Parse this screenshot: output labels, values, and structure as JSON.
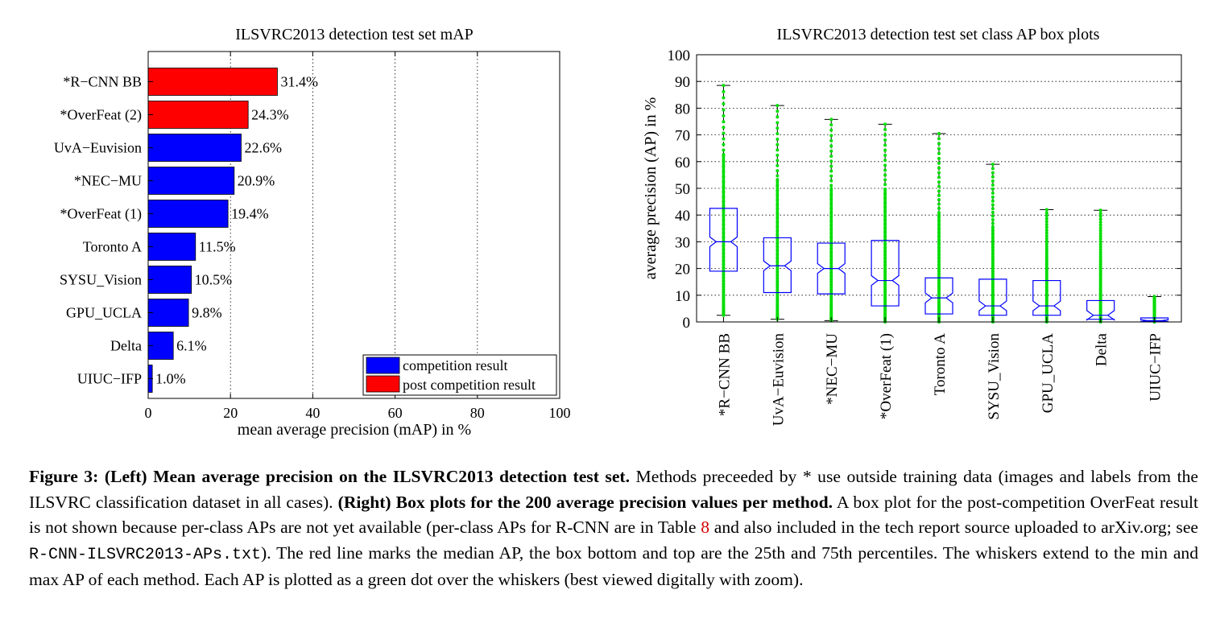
{
  "chart_data": [
    {
      "type": "bar",
      "orientation": "horizontal",
      "title": "ILSVRC2013 detection test set mAP",
      "xlabel": "mean average precision (mAP) in %",
      "xlim": [
        0,
        100
      ],
      "xticks": [
        "0",
        "20",
        "40",
        "60",
        "80",
        "100"
      ],
      "grid": "vertical dotted",
      "categories": [
        "*R−CNN BB",
        "*OverFeat (2)",
        "UvA−Euvision",
        "*NEC−MU",
        "*OverFeat (1)",
        "Toronto A",
        "SYSU_Vision",
        "GPU_UCLA",
        "Delta",
        "UIUC−IFP"
      ],
      "values": [
        31.4,
        24.3,
        22.6,
        20.9,
        19.4,
        11.5,
        10.5,
        9.8,
        6.1,
        1.0
      ],
      "value_labels": [
        "31.4%",
        "24.3%",
        "22.6%",
        "20.9%",
        "19.4%",
        "11.5%",
        "10.5%",
        "9.8%",
        "6.1%",
        "1.0%"
      ],
      "groups": [
        "post",
        "post",
        "comp",
        "comp",
        "comp",
        "comp",
        "comp",
        "comp",
        "comp",
        "comp"
      ],
      "legend": {
        "placement": "bottom-right",
        "entries": [
          {
            "key": "comp",
            "label": "competition result",
            "color": "#0000ff"
          },
          {
            "key": "post",
            "label": "post competition result",
            "color": "#ff0000"
          }
        ]
      }
    },
    {
      "type": "box",
      "title": "ILSVRC2013 detection test set class AP box plots",
      "ylabel": "average precision (AP) in %",
      "ylim": [
        0,
        100
      ],
      "yticks": [
        "0",
        "10",
        "20",
        "30",
        "40",
        "50",
        "60",
        "70",
        "80",
        "90",
        "100"
      ],
      "grid": "horizontal dotted",
      "categories": [
        "*R−CNN BB",
        "UvA−Euvision",
        "*NEC−MU",
        "*OverFeat (1)",
        "Toronto A",
        "SYSU_Vision",
        "GPU_UCLA",
        "Delta",
        "UIUC−IFP"
      ],
      "boxes": [
        {
          "min": 2.5,
          "q1": 19,
          "median": 30,
          "q3": 42.5,
          "max": 88.5
        },
        {
          "min": 1.0,
          "q1": 11,
          "median": 21,
          "q3": 31.5,
          "max": 81
        },
        {
          "min": 0.5,
          "q1": 10.5,
          "median": 20,
          "q3": 29.5,
          "max": 75.8
        },
        {
          "min": 0.0,
          "q1": 6,
          "median": 15.5,
          "q3": 30.5,
          "max": 74
        },
        {
          "min": 0.0,
          "q1": 3,
          "median": 9,
          "q3": 16.5,
          "max": 70.5
        },
        {
          "min": 0.0,
          "q1": 2.5,
          "median": 6,
          "q3": 16,
          "max": 59
        },
        {
          "min": 0.0,
          "q1": 2.5,
          "median": 6,
          "q3": 15.5,
          "max": 42
        },
        {
          "min": 0.0,
          "q1": 1,
          "median": 2.5,
          "q3": 8,
          "max": 41.8
        },
        {
          "min": 0.0,
          "q1": 0.2,
          "median": 0.5,
          "q3": 1.5,
          "max": 9.5
        }
      ],
      "colors": {
        "box": "#0000ff",
        "whisker": "#000000",
        "points": "#00dd00"
      }
    }
  ],
  "caption": {
    "figure_label": "Figure 3:",
    "left_heading": "(Left) Mean average precision on the ILSVRC2013 detection test set.",
    "text1": "Methods preceeded by * use outside training data (images and labels from the ILSVRC classification dataset in all cases).",
    "right_heading": "(Right) Box plots for the 200 average precision values per method.",
    "text2": "A box plot for the post-competition OverFeat result is not shown because per-class APs are not yet available (per-class APs for R-CNN are in Table",
    "table_ref": "8",
    "text3": "and also included in the tech report source uploaded to arXiv.org; see",
    "filename": "R-CNN-ILSVRC2013-APs.txt",
    "text4": "). The red line marks the median AP, the box bottom and top are the 25th and 75th percentiles. The whiskers extend to the min and max AP of each method. Each AP is plotted as a green dot over the whiskers (best viewed digitally with zoom)."
  }
}
